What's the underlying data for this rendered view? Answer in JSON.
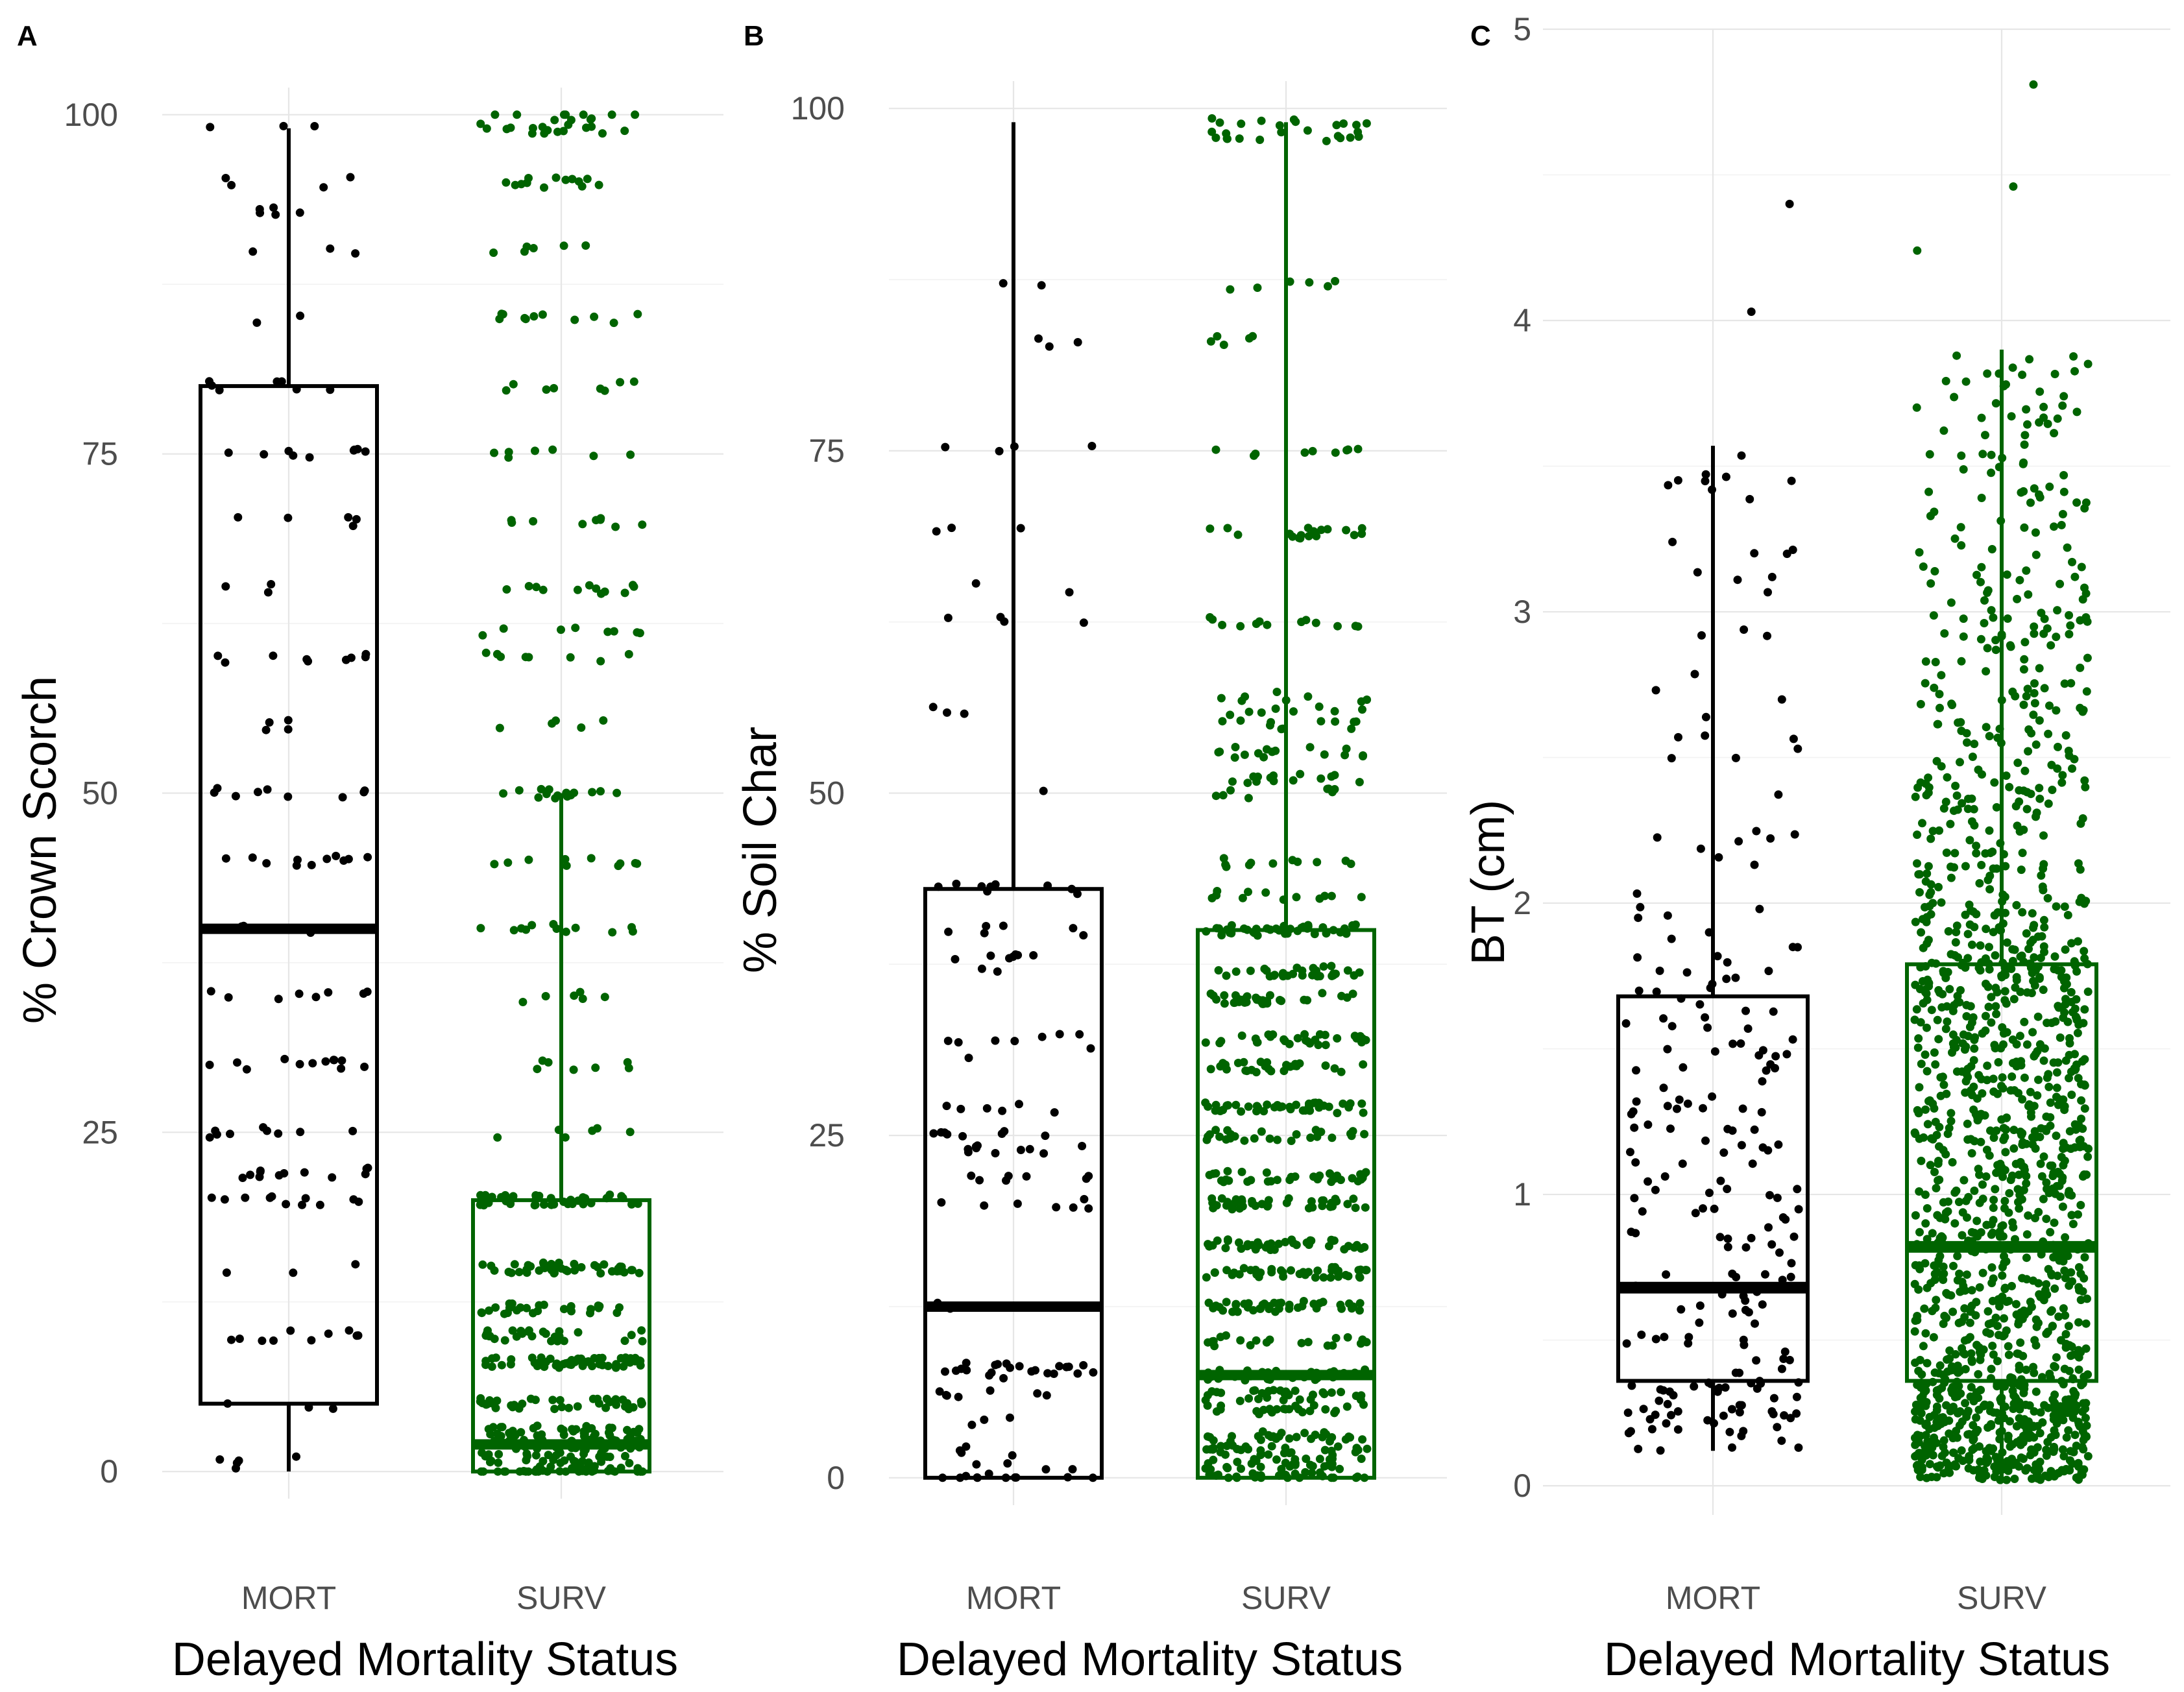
{
  "figure": {
    "colors": {
      "MORT": "#000000",
      "SURV": "#006400"
    }
  },
  "chart_data": [
    {
      "type": "boxplot",
      "panel": "A",
      "title": "",
      "xlabel": "Delayed Mortality Status",
      "ylabel": "% Crown Scorch",
      "categories": [
        "MORT",
        "SURV"
      ],
      "ylim": [
        -2,
        102
      ],
      "yticks": [
        0,
        25,
        50,
        75,
        100
      ],
      "grid": true,
      "points": "jittered",
      "boxes": [
        {
          "group": "MORT",
          "whisker_low": 0,
          "q1": 5,
          "median": 40,
          "q3": 80,
          "whisker_high": 99
        },
        {
          "group": "SURV",
          "whisker_low": 0,
          "q1": 0,
          "median": 2,
          "q3": 20,
          "whisker_high": 50
        }
      ],
      "observed_levels": {
        "MORT": [
          0,
          1,
          5,
          10,
          15,
          20,
          22,
          25,
          30,
          35,
          40,
          45,
          50,
          55,
          60,
          65,
          70,
          75,
          80,
          85,
          90,
          93,
          95,
          99
        ],
        "SURV": [
          0,
          1,
          2,
          3,
          5,
          8,
          10,
          12,
          15,
          20,
          25,
          30,
          35,
          40,
          45,
          50,
          55,
          60,
          62,
          65,
          70,
          75,
          80,
          85,
          90,
          95,
          99,
          100
        ]
      },
      "approx_n": {
        "MORT": 150,
        "SURV": 560
      }
    },
    {
      "type": "boxplot",
      "panel": "B",
      "title": "",
      "xlabel": "Delayed Mortality Status",
      "ylabel": "% Soil Char",
      "categories": [
        "MORT",
        "SURV"
      ],
      "ylim": [
        -2,
        102
      ],
      "yticks": [
        0,
        25,
        50,
        75,
        100
      ],
      "grid": true,
      "points": "jittered",
      "boxes": [
        {
          "group": "MORT",
          "whisker_low": 0,
          "q1": 0,
          "median": 12.5,
          "q3": 43,
          "whisker_high": 99
        },
        {
          "group": "SURV",
          "whisker_low": 0,
          "q1": 0,
          "median": 7.5,
          "q3": 40,
          "whisker_high": 99
        }
      ],
      "observed_levels": {
        "MORT": [
          0,
          1,
          2,
          4,
          6,
          7.5,
          8,
          12.5,
          20,
          22,
          24,
          25,
          27,
          31,
          32,
          37,
          38,
          40,
          43,
          45,
          50,
          56,
          62.5,
          65,
          69,
          75,
          83,
          87,
          99
        ],
        "SURV": [
          0,
          1,
          2,
          3,
          5,
          6,
          7.5,
          10,
          12.5,
          15,
          17,
          20,
          22,
          25,
          27,
          30,
          32,
          35,
          37,
          40,
          42.5,
          45,
          50,
          51,
          53,
          55,
          56,
          57,
          62.5,
          69,
          75,
          83,
          87,
          98,
          99
        ]
      },
      "approx_n": {
        "MORT": 150,
        "SURV": 820
      }
    },
    {
      "type": "boxplot",
      "panel": "C",
      "title": "",
      "xlabel": "Delayed Mortality Status",
      "ylabel": "BT (cm)",
      "categories": [
        "MORT",
        "SURV"
      ],
      "ylim": [
        -0.1,
        5
      ],
      "yticks": [
        0,
        1,
        2,
        3,
        4,
        5
      ],
      "grid": true,
      "points": "jittered",
      "boxes": [
        {
          "group": "MORT",
          "whisker_low": 0.12,
          "q1": 0.36,
          "median": 0.68,
          "q3": 1.68,
          "whisker_high": 3.57
        },
        {
          "group": "SURV",
          "whisker_low": 0.02,
          "q1": 0.36,
          "median": 0.82,
          "q3": 1.79,
          "whisker_high": 3.9
        }
      ],
      "outliers": {
        "MORT": [
          4.03,
          4.4
        ],
        "SURV": [
          4.24,
          4.46,
          4.81
        ]
      },
      "approx_n": {
        "MORT": 230,
        "SURV": 1500
      }
    }
  ]
}
